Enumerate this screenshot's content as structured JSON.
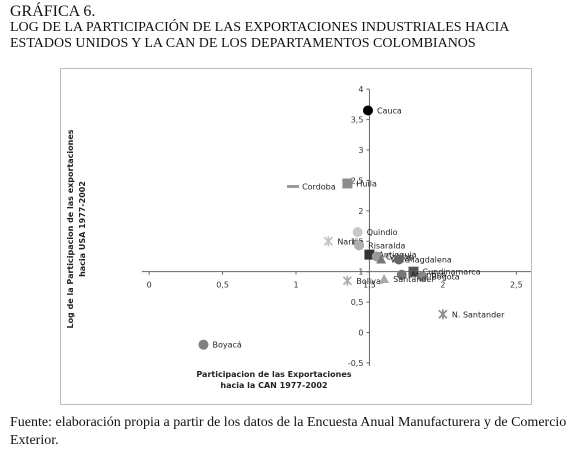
{
  "figure": {
    "label": "GRÁFICA 6.",
    "title_line1": "LOG DE LA PARTICIPACIÓN DE LAS EXPORTACIONES INDUSTRIALES HACIA",
    "title_line2": "ESTADOS UNIDOS Y LA CAN DE LOS DEPARTAMENTOS COLOMBIANOS"
  },
  "source": "Fuente: elaboración propia a partir de los datos de la Encuesta Anual Manufacturera y de Comercio Exterior.",
  "chart_data": {
    "type": "scatter",
    "xlabel": [
      "Participacion de las Exportaciones",
      "hacia la CAN 1977-2002"
    ],
    "ylabel": [
      "Log de la Participacion de las exportaciones",
      "hacia USA 1977-2002"
    ],
    "xlim": [
      -0.6,
      2.6
    ],
    "ylim": [
      -0.6,
      4.2
    ],
    "x_axis_at_y": 1.0,
    "y_axis_at_x": 1.5,
    "x_ticks": [
      "0",
      "0,5",
      "1",
      "1,5",
      "2",
      "2,5"
    ],
    "x_tick_values": [
      0,
      0.5,
      1,
      1.5,
      2,
      2.5
    ],
    "y_ticks": [
      "-0,5",
      "0",
      "0,5",
      "1",
      "1,5",
      "2",
      "2,5",
      "3",
      "3,5",
      "4"
    ],
    "y_tick_values": [
      -0.5,
      0,
      0.5,
      1,
      1.5,
      2,
      2.5,
      3,
      3.5,
      4
    ],
    "grid": false,
    "points": [
      {
        "label": "Cauca",
        "x": 1.49,
        "y": 3.65,
        "marker": "circle",
        "color": "#000000"
      },
      {
        "label": "Huila",
        "x": 1.35,
        "y": 2.45,
        "marker": "square",
        "color": "#8c8c8c"
      },
      {
        "label": "Cordoba",
        "x": 0.98,
        "y": 2.4,
        "marker": "dash",
        "color": "#9a9a9a"
      },
      {
        "label": "Quindio",
        "x": 1.42,
        "y": 1.65,
        "marker": "circle",
        "color": "#c8c8c8"
      },
      {
        "label": "Nariño",
        "x": 1.22,
        "y": 1.5,
        "marker": "x",
        "color": "#c0c0c0"
      },
      {
        "label": "Risaralda",
        "x": 1.43,
        "y": 1.43,
        "marker": "circle",
        "color": "#b0b0b0"
      },
      {
        "label": "Antioquia",
        "x": 1.5,
        "y": 1.28,
        "marker": "square",
        "color": "#333333"
      },
      {
        "label": "Caldas",
        "x": 1.55,
        "y": 1.25,
        "marker": "circle",
        "color": "#999999"
      },
      {
        "label": "Valle",
        "x": 1.58,
        "y": 1.2,
        "marker": "triangle",
        "color": "#777777"
      },
      {
        "label": "Magdalena",
        "x": 1.7,
        "y": 1.2,
        "marker": "circle",
        "color": "#666666"
      },
      {
        "label": "Cundinamarca",
        "x": 1.8,
        "y": 1.0,
        "marker": "square",
        "color": "#555555"
      },
      {
        "label": "Atlantico",
        "x": 1.72,
        "y": 0.95,
        "marker": "circle",
        "color": "#777777"
      },
      {
        "label": "Bogota",
        "x": 1.86,
        "y": 0.92,
        "marker": "circle",
        "color": "#888888"
      },
      {
        "label": "Bolivar",
        "x": 1.35,
        "y": 0.85,
        "marker": "x",
        "color": "#aaaaaa"
      },
      {
        "label": "Santander",
        "x": 1.6,
        "y": 0.88,
        "marker": "triangle",
        "color": "#aaaaaa"
      },
      {
        "label": "N. Santander",
        "x": 2.0,
        "y": 0.3,
        "marker": "x",
        "color": "#8a8a8a"
      },
      {
        "label": "Boyacá",
        "x": 0.37,
        "y": -0.2,
        "marker": "circle",
        "color": "#808080"
      }
    ]
  }
}
